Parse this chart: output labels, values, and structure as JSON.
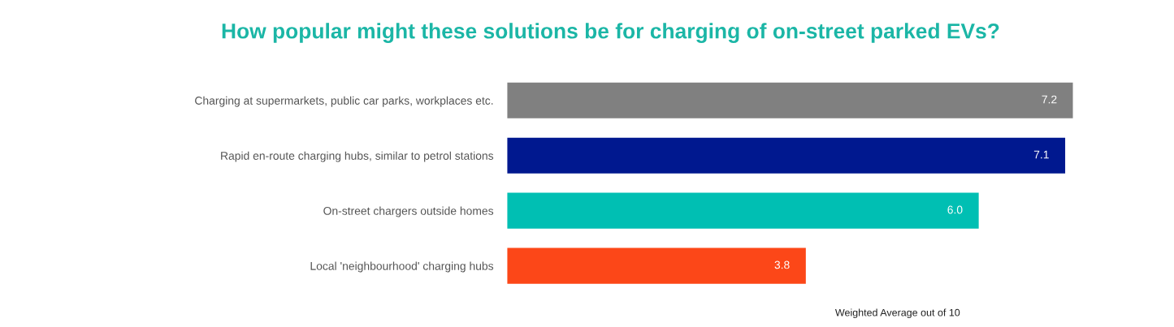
{
  "chart_data": {
    "type": "bar",
    "orientation": "horizontal",
    "title": "How popular might these solutions be for charging of on-street parked EVs?",
    "xlabel": "Weighted Average out of 10",
    "categories": [
      "Charging at supermarkets, public car parks, workplaces etc.",
      "Rapid en-route charging hubs, similar to petrol stations",
      "On-street chargers outside homes",
      "Local 'neighbourhood' charging hubs"
    ],
    "values": [
      7.2,
      7.1,
      6.0,
      3.8
    ],
    "colors": [
      "#808080",
      "#00188f",
      "#00bfb3",
      "#fc4718"
    ],
    "value_labels": [
      "7.2",
      "7.1",
      "6.0",
      "3.8"
    ],
    "tick_labels": "y",
    "grid": false,
    "legend": false
  }
}
